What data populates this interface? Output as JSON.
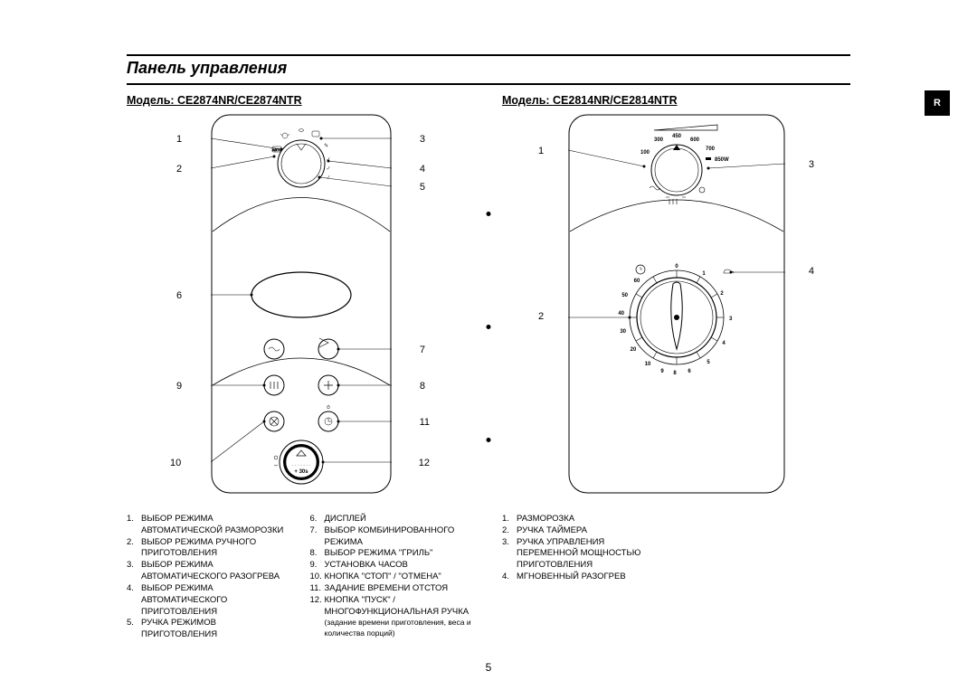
{
  "page_title": "Панель управления",
  "page_number": "5",
  "side_tab": "R",
  "left": {
    "model_label": "Модель: CE2874NR/CE2874NTR",
    "callouts": {
      "1": "1",
      "2": "2",
      "3": "3",
      "4": "4",
      "5": "5",
      "6": "6",
      "7": "7",
      "8": "8",
      "9": "9",
      "10": "10",
      "11": "11",
      "12": "12"
    },
    "dial_label": "+ 30s",
    "auto_label": "АВТО",
    "legend_left": [
      {
        "n": "1.",
        "t": "ВЫБОР РЕЖИМА АВТОМАТИЧЕСКОЙ РАЗМОРОЗКИ"
      },
      {
        "n": "2.",
        "t": "ВЫБОР РЕЖИМА РУЧНОГО ПРИГОТОВЛЕНИЯ"
      },
      {
        "n": "3.",
        "t": "ВЫБОР РЕЖИМА АВТОМАТИЧЕСКОГО РАЗОГРЕВА"
      },
      {
        "n": "4.",
        "t": "ВЫБОР РЕЖИМА АВТОМАТИЧЕСКОГО ПРИГОТОВЛЕНИЯ"
      },
      {
        "n": "5.",
        "t": "РУЧКА РЕЖИМОВ ПРИГОТОВЛЕНИЯ"
      }
    ],
    "legend_right": [
      {
        "n": "6.",
        "t": "ДИСПЛЕЙ"
      },
      {
        "n": "7.",
        "t": "ВЫБОР КОМБИНИРОВАННОГО РЕЖИМА"
      },
      {
        "n": "8.",
        "t": "ВЫБОР РЕЖИМА \"ГРИЛЬ\""
      },
      {
        "n": "9.",
        "t": "УСТАНОВКА ЧАСОВ"
      },
      {
        "n": "10.",
        "t": "КНОПКА \"СТОП\" / \"ОТМЕНА\""
      },
      {
        "n": "11.",
        "t": "ЗАДАНИЕ ВРЕМЕНИ ОТСТОЯ"
      },
      {
        "n": "12.",
        "t": "КНОПКА \"ПУСК\" / МНОГОФУНКЦИОНАЛЬНАЯ РУЧКА",
        "sub": "(задание времени приготовления, веса и количества порций)"
      }
    ]
  },
  "right": {
    "model_label": "Модель: CE2814NR/CE2814NTR",
    "callouts": {
      "1": "1",
      "2": "2",
      "3": "3",
      "4": "4"
    },
    "power": {
      "100": "100",
      "300": "300",
      "450": "450",
      "600": "600",
      "700": "700",
      "max": "850W"
    },
    "timer": {
      "0": "0",
      "1": "1",
      "2": "2",
      "3": "3",
      "4": "4",
      "5": "5",
      "6": "6",
      "8": "8",
      "9": "9",
      "10": "10",
      "20": "20",
      "30": "30",
      "40": "40",
      "50": "50",
      "60": "60"
    },
    "legend": [
      {
        "n": "1.",
        "t": "РАЗМОРОЗКА"
      },
      {
        "n": "2.",
        "t": "РУЧКА ТАЙМЕРА"
      },
      {
        "n": "3.",
        "t": "РУЧКА УПРАВЛЕНИЯ ПЕРЕМЕННОЙ МОЩНОСТЬЮ ПРИГОТОВЛЕНИЯ"
      },
      {
        "n": "4.",
        "t": "МГНОВЕННЫЙ РАЗОГРЕВ"
      }
    ]
  }
}
